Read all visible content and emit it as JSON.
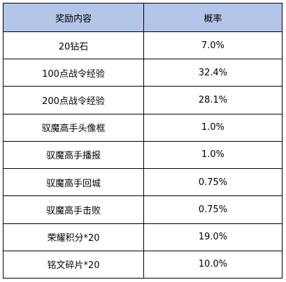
{
  "table": {
    "header_fill": "#b4c6e7",
    "columns": [
      "奖励内容",
      "概率"
    ],
    "rows": [
      {
        "reward": "20钻石",
        "probability": "7.0%"
      },
      {
        "reward": "100点战令经验",
        "probability": "32.4%"
      },
      {
        "reward": "200点战令经验",
        "probability": "28.1%"
      },
      {
        "reward": "驭魔高手头像框",
        "probability": "1.0%"
      },
      {
        "reward": "驭魔高手播报",
        "probability": "1.0%"
      },
      {
        "reward": "驭魔高手回城",
        "probability": "0.75%"
      },
      {
        "reward": "驭魔高手击败",
        "probability": "0.75%"
      },
      {
        "reward": "荣耀积分*20",
        "probability": "19.0%"
      },
      {
        "reward": "铭文碎片*20",
        "probability": "10.0%"
      }
    ]
  }
}
